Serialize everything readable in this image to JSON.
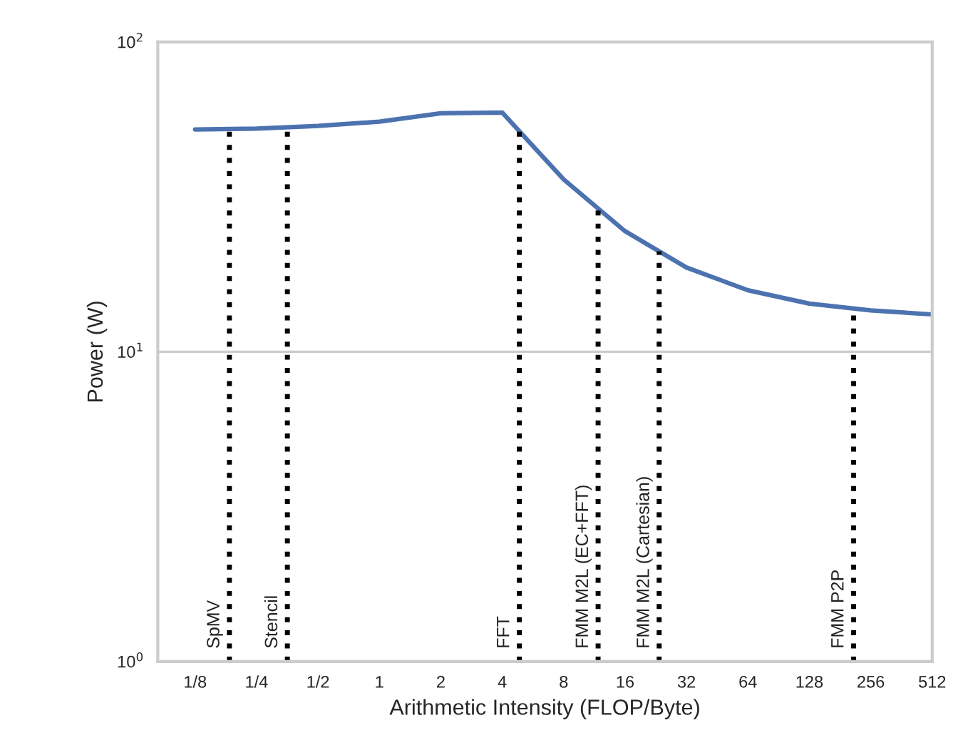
{
  "chart_data": {
    "type": "line",
    "xlabel": "Arithmetic Intensity (FLOP/Byte)",
    "ylabel": "Power (W)",
    "log": "xy",
    "grid": "y",
    "legend": false,
    "marker": "none",
    "line_style": "solid",
    "x": [
      0.125,
      0.25,
      0.5,
      1,
      2,
      4,
      8,
      16,
      32,
      64,
      128,
      256,
      512
    ],
    "series": [
      {
        "color": "#4c72b0",
        "values": [
          52.2,
          52.5,
          53.6,
          55.3,
          58.9,
          59.2,
          36.0,
          24.5,
          18.7,
          15.8,
          14.3,
          13.6,
          13.2
        ]
      }
    ],
    "xlim": [
      0.082,
      512
    ],
    "xticks": [
      {
        "value": 0.125,
        "label": "1/8"
      },
      {
        "value": 0.25,
        "label": "1/4"
      },
      {
        "value": 0.5,
        "label": "1/2"
      },
      1,
      2,
      4,
      8,
      16,
      32,
      64,
      128,
      256,
      512
    ],
    "ylim": [
      1,
      100
    ],
    "yticks": [
      {
        "value": 1,
        "label": "10$^{0}$"
      },
      {
        "value": 10,
        "label": "10$^{1}$"
      },
      {
        "value": 100,
        "label": "10$^{2}$"
      }
    ],
    "ref_lines": [
      {
        "axis": "x",
        "value": 0.184,
        "label": "SpMV",
        "color": "#000000",
        "line_style": "dotted"
      },
      {
        "axis": "x",
        "value": 0.354,
        "label": "Stencil",
        "color": "#000000",
        "line_style": "dotted"
      },
      {
        "axis": "x",
        "value": 4.85,
        "label": "FFT",
        "color": "#000000",
        "line_style": "dotted"
      },
      {
        "axis": "x",
        "value": 11.8,
        "label": "FMM M2L (EC+FFT)",
        "color": "#000000",
        "line_style": "dotted"
      },
      {
        "axis": "x",
        "value": 23.5,
        "label": "FMM M2L (Cartesian)",
        "color": "#000000",
        "line_style": "dotted"
      },
      {
        "axis": "x",
        "value": 211,
        "label": "FMM P2P",
        "color": "#000000",
        "line_style": "dotted"
      }
    ]
  }
}
